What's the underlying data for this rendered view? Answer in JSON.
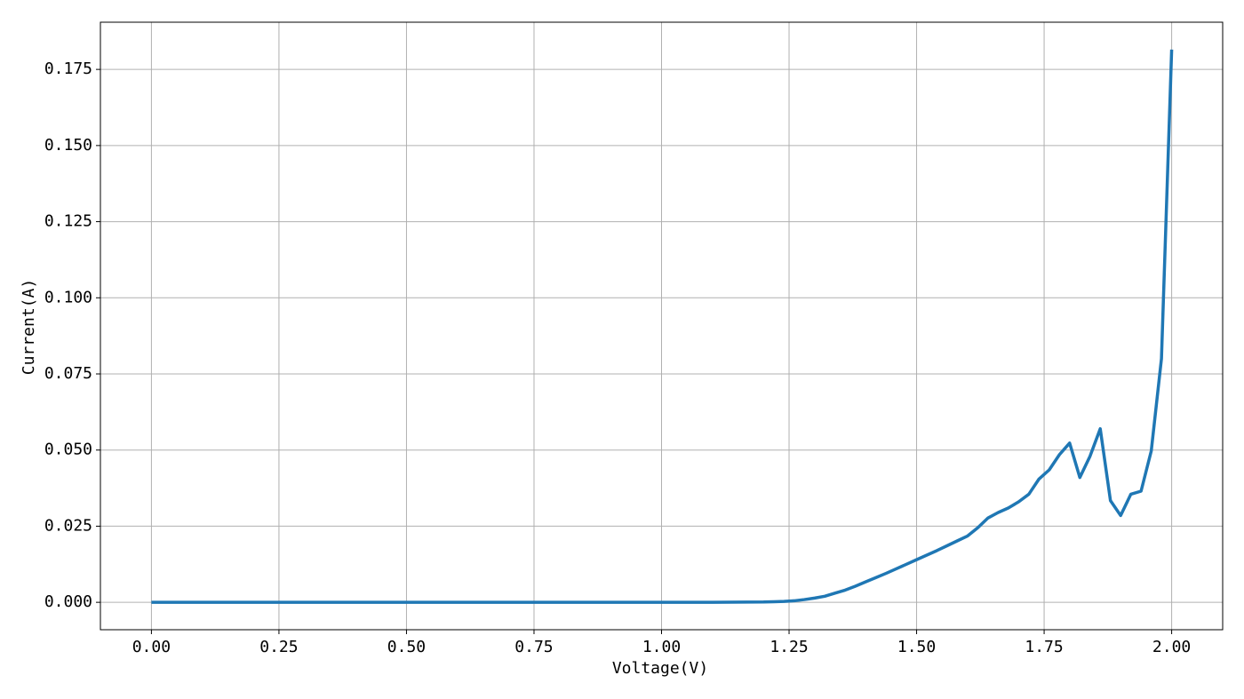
{
  "chart_data": {
    "type": "line",
    "x_label": "Voltage(V)",
    "y_label": "Current(A)",
    "x": [
      0,
      0.1,
      0.2,
      0.3,
      0.4,
      0.5,
      0.6,
      0.7,
      0.8,
      0.9,
      1.0,
      1.1,
      1.2,
      1.22,
      1.24,
      1.26,
      1.28,
      1.3,
      1.32,
      1.34,
      1.36,
      1.38,
      1.4,
      1.42,
      1.44,
      1.46,
      1.48,
      1.5,
      1.52,
      1.54,
      1.56,
      1.58,
      1.6,
      1.62,
      1.64,
      1.66,
      1.68,
      1.7,
      1.72,
      1.74,
      1.76,
      1.78,
      1.8,
      1.82,
      1.84,
      1.86,
      1.88,
      1.9,
      1.92,
      1.94,
      1.96,
      1.98,
      2.0
    ],
    "series": [
      {
        "color": "#1f77b4",
        "values": [
          0,
          0,
          0,
          0,
          0,
          0,
          0,
          0,
          0,
          0,
          0,
          0,
          0.0001,
          0.0002,
          0.0003,
          0.0005,
          0.0009,
          0.0014,
          0.002,
          0.003,
          0.004,
          0.0053,
          0.0067,
          0.0081,
          0.0095,
          0.011,
          0.0125,
          0.014,
          0.0155,
          0.017,
          0.0186,
          0.0202,
          0.0218,
          0.0245,
          0.0277,
          0.0295,
          0.031,
          0.033,
          0.0355,
          0.0405,
          0.0435,
          0.0485,
          0.0523,
          0.041,
          0.048,
          0.057,
          0.0334,
          0.0285,
          0.0355,
          0.0365,
          0.0497,
          0.08,
          0.1815
        ]
      }
    ],
    "xlim": [
      -0.1,
      2.1
    ],
    "ylim": [
      -0.009,
      0.1905
    ],
    "xticks": [
      {
        "value": 0,
        "label": "0.00"
      },
      {
        "value": 0.25,
        "label": "0.25"
      },
      {
        "value": 0.5,
        "label": "0.50"
      },
      {
        "value": 0.75,
        "label": "0.75"
      },
      {
        "value": 1,
        "label": "1.00"
      },
      {
        "value": 1.25,
        "label": "1.25"
      },
      {
        "value": 1.5,
        "label": "1.50"
      },
      {
        "value": 1.75,
        "label": "1.75"
      },
      {
        "value": 2,
        "label": "2.00"
      }
    ],
    "yticks": [
      {
        "value": 0,
        "label": "0.000"
      },
      {
        "value": 0.025,
        "label": "0.025"
      },
      {
        "value": 0.05,
        "label": "0.050"
      },
      {
        "value": 0.075,
        "label": "0.075"
      },
      {
        "value": 0.1,
        "label": "0.100"
      },
      {
        "value": 0.125,
        "label": "0.125"
      },
      {
        "value": 0.15,
        "label": "0.150"
      },
      {
        "value": 0.175,
        "label": "0.175"
      }
    ],
    "grid": true
  }
}
